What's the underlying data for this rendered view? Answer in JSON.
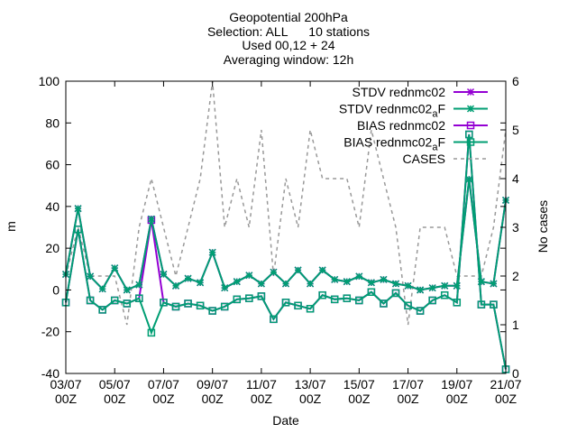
{
  "chart_data": {
    "type": "line",
    "title_lines": [
      "Geopotential 200hPa",
      "Selection: ALL      10 stations",
      "Used 00,12 + 24",
      "Averaging window: 12h"
    ],
    "xlabel": "Date",
    "ylabel": "m",
    "y2label": "No cases",
    "ylim": [
      -40,
      100
    ],
    "y2lim": [
      0,
      6
    ],
    "yticks": [
      "-40",
      "-20",
      "0",
      "20",
      "40",
      "60",
      "80",
      "100"
    ],
    "y2ticks": [
      "0",
      "1",
      "2",
      "3",
      "4",
      "5",
      "6"
    ],
    "xticks": [
      {
        "date": "03/07",
        "hour": "00Z"
      },
      {
        "date": "05/07",
        "hour": "00Z"
      },
      {
        "date": "07/07",
        "hour": "00Z"
      },
      {
        "date": "09/07",
        "hour": "00Z"
      },
      {
        "date": "11/07",
        "hour": "00Z"
      },
      {
        "date": "13/07",
        "hour": "00Z"
      },
      {
        "date": "15/07",
        "hour": "00Z"
      },
      {
        "date": "17/07",
        "hour": "00Z"
      },
      {
        "date": "19/07",
        "hour": "00Z"
      },
      {
        "date": "21/07",
        "hour": "00Z"
      }
    ],
    "x_step_note": "points every 12h from 03/07 00Z to 21/07 00Z",
    "legend_position": "top-right",
    "series": [
      {
        "name": "STDV rednmc02",
        "color": "#9400d3",
        "marker": "star",
        "values": [
          7.5,
          39,
          6.5,
          0.5,
          10.5,
          0,
          2.5,
          34,
          7.5,
          2,
          5.5,
          3.5,
          18,
          1,
          4,
          7,
          3,
          8.5,
          3,
          9.5,
          3,
          9.5,
          5,
          4,
          6.5,
          3.5,
          5,
          3,
          2,
          0,
          1,
          2,
          2,
          53,
          4,
          3,
          43
        ]
      },
      {
        "name": "STDV rednmc02_aF",
        "color": "#009e73",
        "marker": "star",
        "values": [
          7.5,
          39,
          6.5,
          0.5,
          10.5,
          0,
          2.5,
          34,
          7.5,
          2,
          5.5,
          3.5,
          18,
          1,
          4,
          7,
          3,
          8.5,
          3,
          9.5,
          3,
          9.5,
          5,
          4,
          6.5,
          3.5,
          5,
          3,
          2,
          0,
          1,
          2,
          2,
          53,
          4,
          3,
          43
        ]
      },
      {
        "name": "BIAS rednmc02",
        "color": "#9400d3",
        "marker": "square",
        "values": [
          -6,
          29,
          -5,
          -9.5,
          -5,
          -6.5,
          -4,
          33.5,
          -6,
          -8,
          -6.5,
          -7.5,
          -10,
          -8,
          -4.5,
          -4,
          -3,
          -14,
          -6,
          -7.5,
          -9,
          -2.5,
          -4.5,
          -4,
          -5,
          -1,
          -6.5,
          -1.5,
          -7.5,
          -10,
          -5,
          -2.5,
          -6,
          74.5,
          -7,
          -7,
          -38
        ]
      },
      {
        "name": "BIAS rednmc02_aF",
        "color": "#009e73",
        "marker": "square",
        "values": [
          -6,
          29,
          -5,
          -9.5,
          -5,
          -6.5,
          -4,
          -20.5,
          -6,
          -8,
          -6.5,
          -7.5,
          -10,
          -8,
          -4.5,
          -4,
          -3,
          -14,
          -6,
          -7.5,
          -9,
          -2.5,
          -4.5,
          -4,
          -5,
          -1,
          -6.5,
          -1.5,
          -7.5,
          -10,
          -5,
          -2.5,
          -6,
          74.5,
          -7,
          -7,
          -38
        ]
      },
      {
        "name": "CASES",
        "color": "#999999",
        "axis": "y2",
        "dashed": true,
        "values": [
          2,
          3,
          2,
          2,
          2,
          1,
          3,
          4,
          3,
          2,
          3,
          4,
          6,
          3,
          4,
          3,
          5,
          2,
          4,
          3,
          5,
          4,
          4,
          4,
          3,
          5,
          4,
          3,
          1,
          3,
          3,
          3,
          2,
          2,
          2,
          3,
          5
        ]
      }
    ]
  }
}
